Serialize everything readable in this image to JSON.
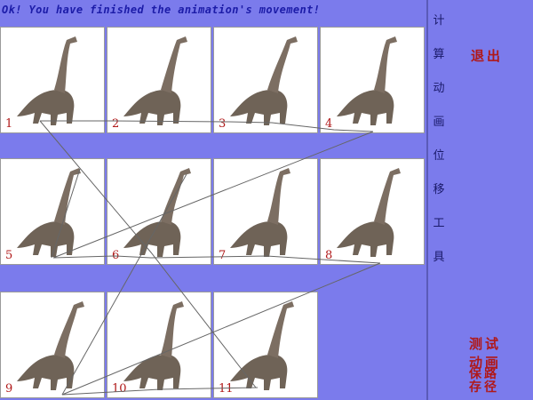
{
  "status_message": "Ok! You have finished the animation's movement!",
  "side_title": [
    "计",
    "算",
    "动",
    "画",
    "位",
    "移",
    "工",
    "具"
  ],
  "buttons": {
    "exit": "退出",
    "test_animation": "测试",
    "test_animation_2": "动画",
    "save_path": "保路",
    "save_path_2": "存径"
  },
  "frames": [
    {
      "label": "1"
    },
    {
      "label": "2"
    },
    {
      "label": "3"
    },
    {
      "label": "4"
    },
    {
      "label": "5"
    },
    {
      "label": "6"
    },
    {
      "label": "7"
    },
    {
      "label": "8"
    },
    {
      "label": "9"
    },
    {
      "label": "10"
    },
    {
      "label": "11"
    }
  ],
  "colors": {
    "background": "#7b7bec",
    "frame_bg": "#ffffff",
    "label": "#b01818",
    "status": "#1c1ca8"
  }
}
